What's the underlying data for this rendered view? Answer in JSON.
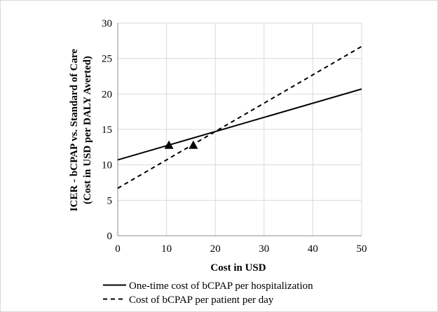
{
  "chart_data": {
    "type": "line",
    "xlabel": "Cost in USD",
    "ylabel_line1": "ICER - bCPAP vs. Standard of Care",
    "ylabel_line2": "(Cost in USD per DALY Averted)",
    "xlim": [
      0,
      50
    ],
    "ylim": [
      0,
      30
    ],
    "xticks": [
      0,
      10,
      20,
      30,
      40,
      50
    ],
    "yticks": [
      0,
      5,
      10,
      15,
      20,
      25,
      30
    ],
    "grid": true,
    "legend_position": "bottom-left",
    "series": [
      {
        "name": "One-time cost of bCPAP per hospitalization",
        "style": "solid",
        "color": "#000000",
        "x": [
          0,
          50
        ],
        "y": [
          10.7,
          20.7
        ],
        "marker": {
          "x": 10.5,
          "y": 12.8
        }
      },
      {
        "name": "Cost of bCPAP per patient per day",
        "style": "dashed",
        "color": "#000000",
        "x": [
          0,
          50
        ],
        "y": [
          6.7,
          26.7
        ],
        "marker": {
          "x": 15.5,
          "y": 12.8
        }
      }
    ]
  }
}
